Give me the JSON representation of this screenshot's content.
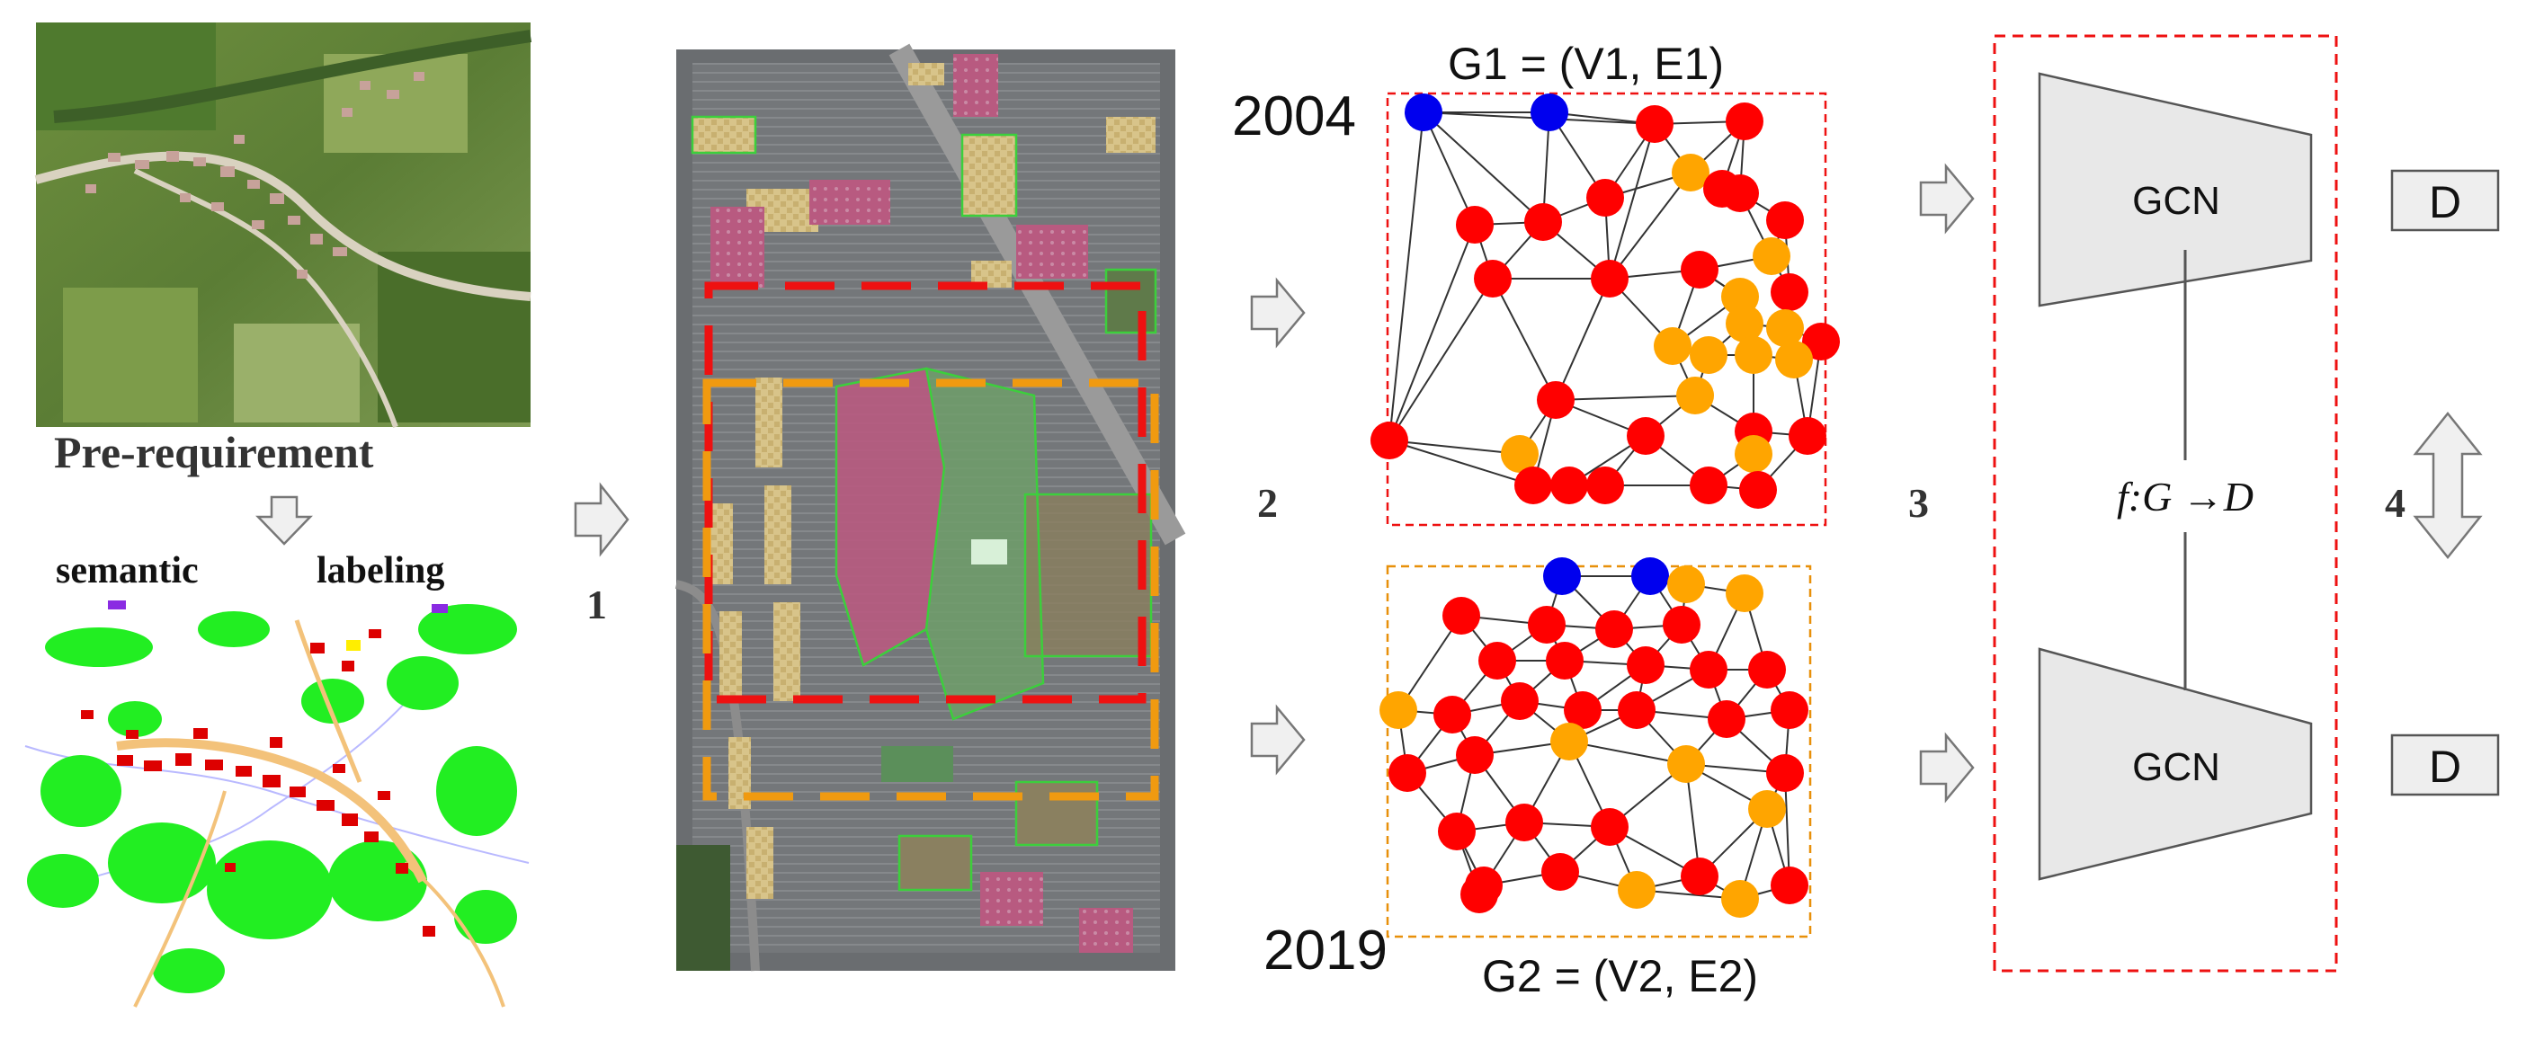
{
  "labels": {
    "pre_requirement": "Pre-requirement",
    "semantic": "semantic",
    "labeling": "labeling",
    "step1": "1",
    "step2": "2",
    "step3": "3",
    "step4": "4",
    "year_2004": "2004",
    "year_2019": "2019",
    "graph1": "G1 = (V1, E1)",
    "graph2": "G2 = (V2, E2)",
    "gcn_top": "GCN",
    "gcn_bottom": "GCN",
    "mapping": "f:G →D",
    "d_top": "D",
    "d_bottom": "D"
  },
  "colors": {
    "red_node": "#ff0000",
    "orange_node": "#ffa500",
    "blue_node": "#0000ee",
    "box_red": "#e53030",
    "box_orange": "#e8900a",
    "gcn_fill": "#e8e8e8",
    "arrow_fill": "#f0f0f0",
    "arrow_stroke": "#777777",
    "vegetation": "#22ee22",
    "building": "#dd0000",
    "road": "#f3c27a"
  }
}
